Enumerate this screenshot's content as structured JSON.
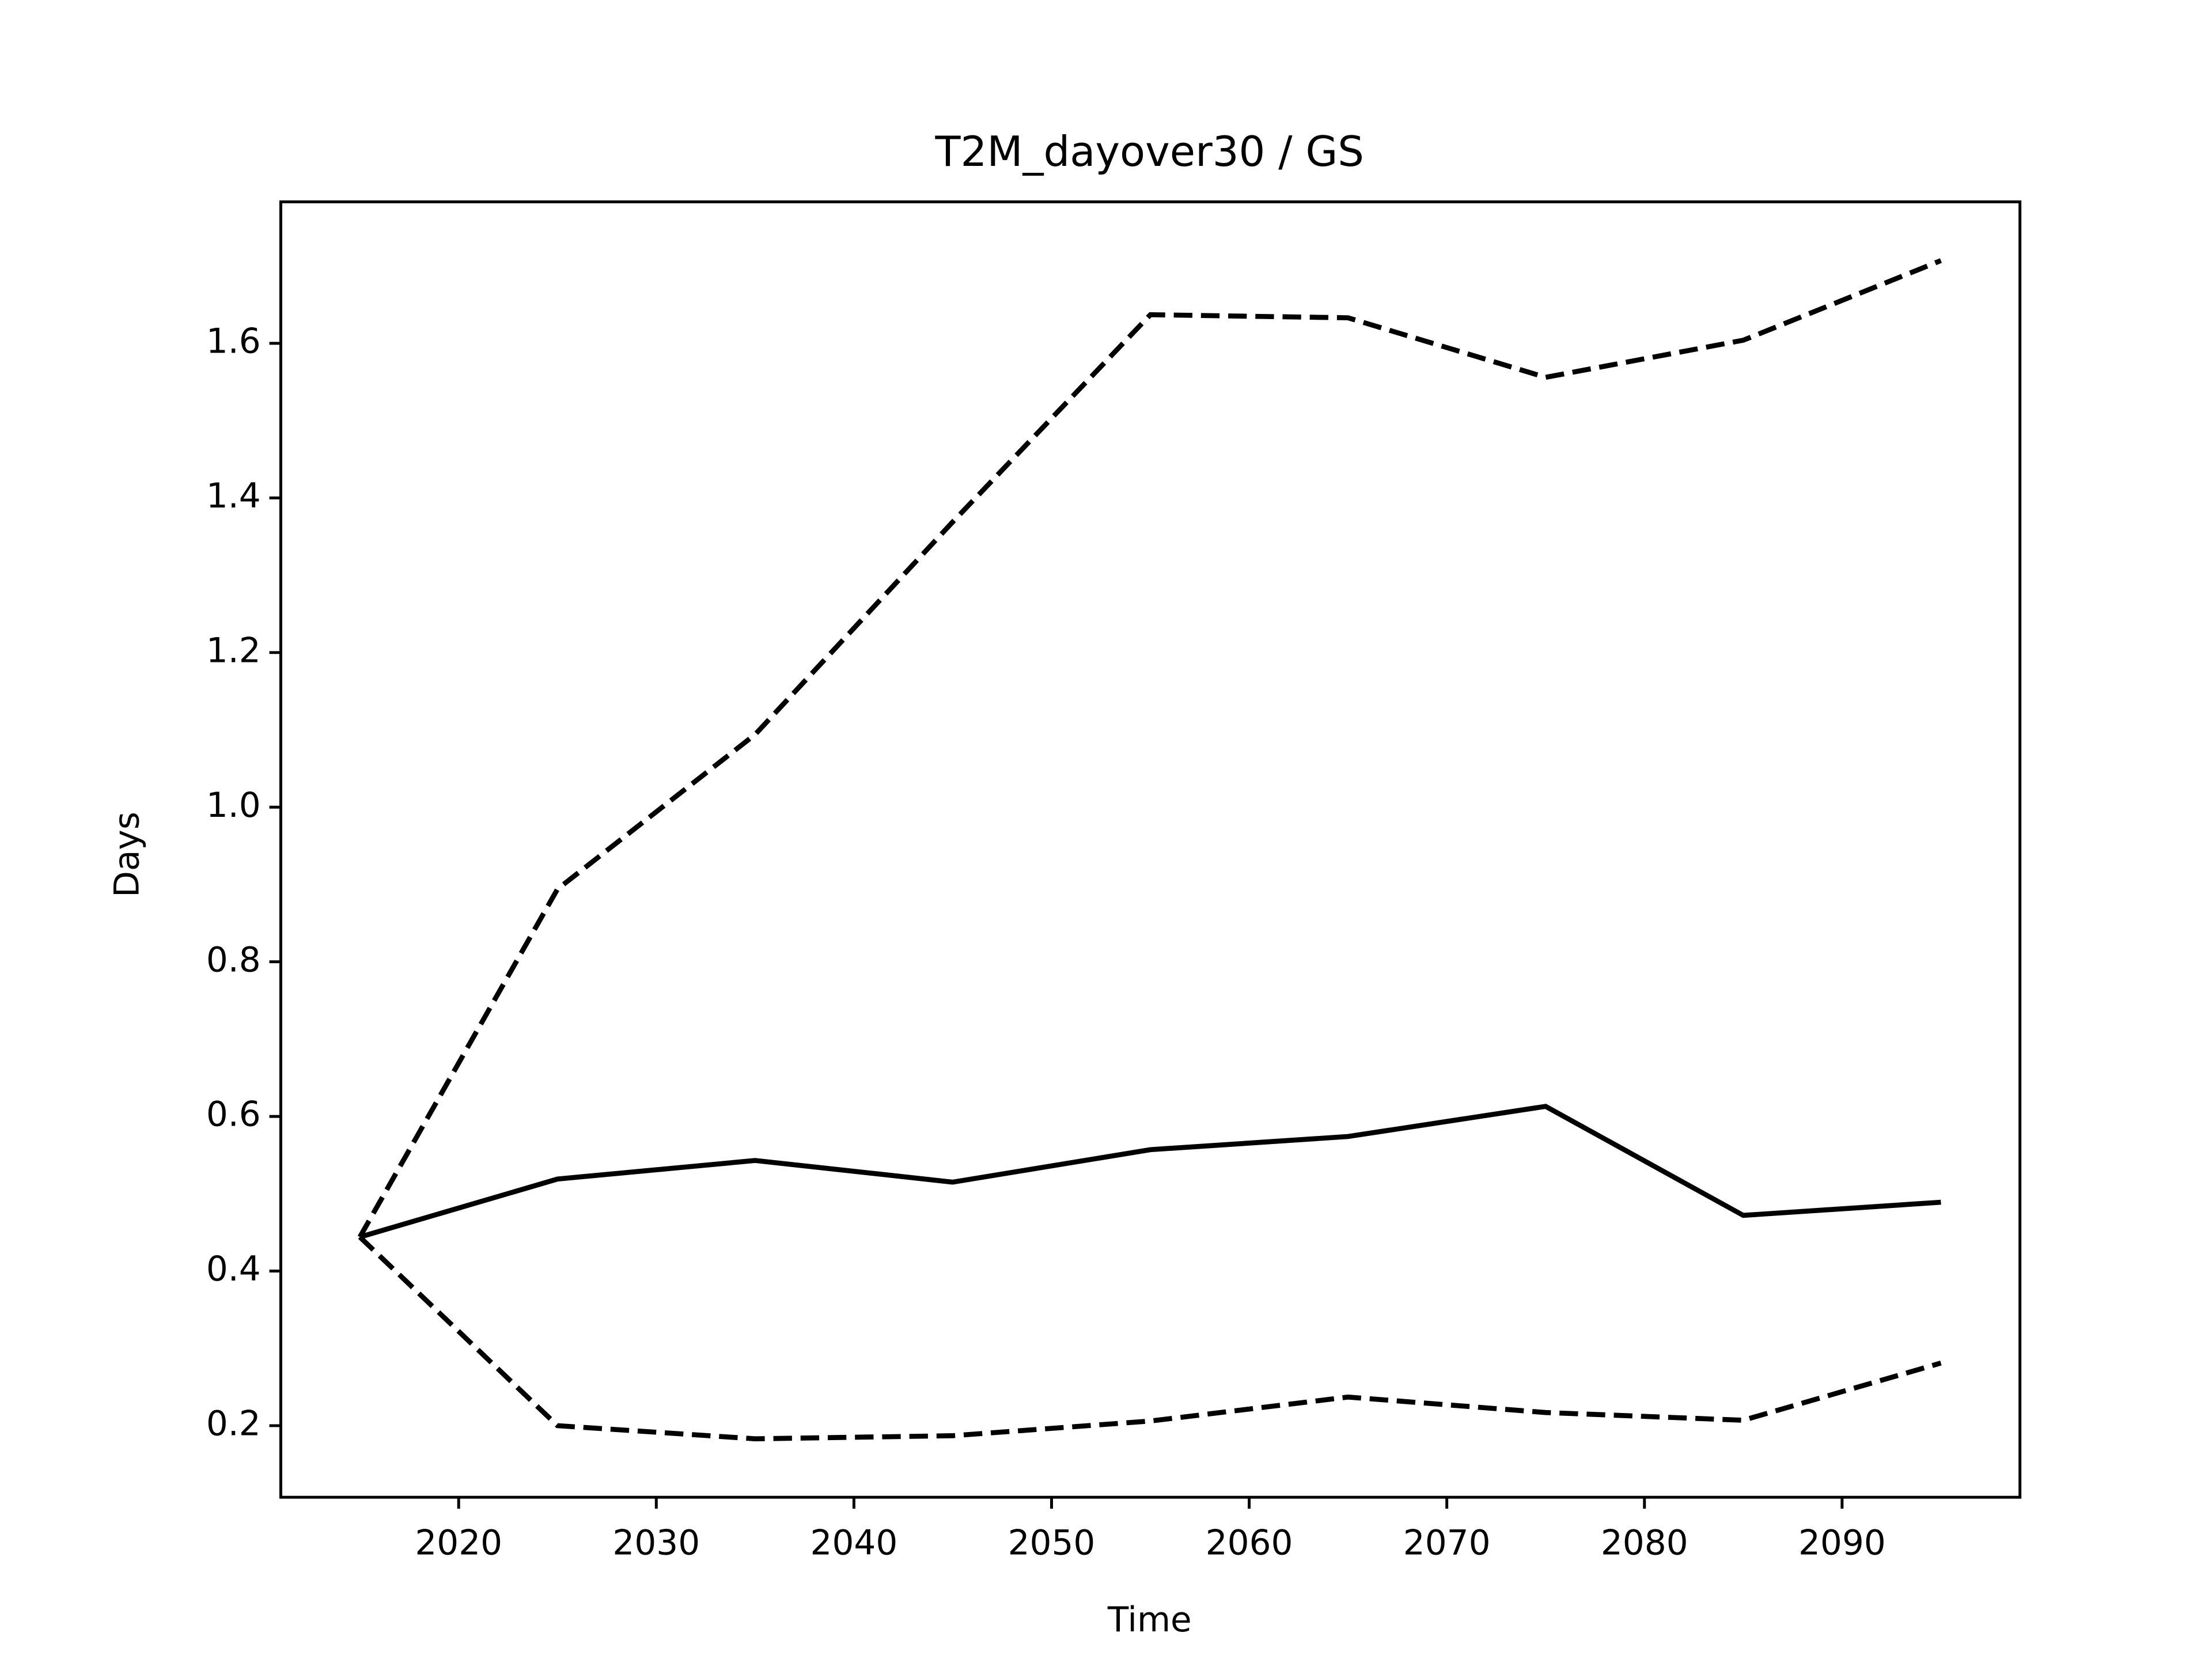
{
  "chart_data": {
    "type": "line",
    "title": "T2M_dayover30 / GS",
    "xlabel": "Time",
    "ylabel": "Days",
    "x": [
      2015,
      2025,
      2035,
      2045,
      2055,
      2065,
      2075,
      2085,
      2095
    ],
    "series": [
      {
        "color": "#000000",
        "style": "solid",
        "values": [
          0.444,
          0.519,
          0.543,
          0.515,
          0.557,
          0.574,
          0.613,
          0.472,
          0.489
        ]
      },
      {
        "color": "#000000",
        "style": "dashed",
        "values": [
          0.444,
          0.894,
          1.094,
          1.369,
          1.637,
          1.633,
          1.556,
          1.604,
          1.707
        ]
      },
      {
        "color": "#000000",
        "style": "dashed",
        "values": [
          0.444,
          0.2,
          0.183,
          0.187,
          0.206,
          0.237,
          0.217,
          0.207,
          0.281
        ]
      }
    ],
    "xlim": [
      2011,
      2099
    ],
    "ylim": [
      0.1074,
      1.783
    ],
    "xticks": [
      2020,
      2030,
      2040,
      2050,
      2060,
      2070,
      2080,
      2090
    ],
    "yticks": [
      0.2,
      0.4,
      0.6,
      0.8,
      {
        "value": 1,
        "label": "1.0"
      },
      1.2,
      1.4,
      1.6
    ],
    "grid": false
  }
}
